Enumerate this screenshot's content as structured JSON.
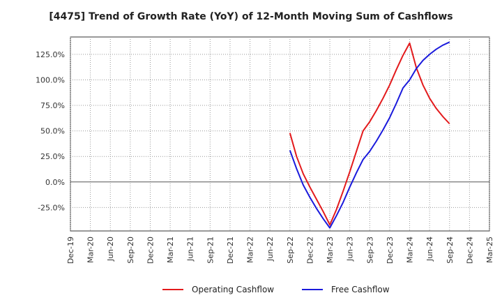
{
  "chart_data": {
    "type": "line",
    "title": "[4475]  Trend of Growth Rate (YoY) of 12-Month Moving Sum of Cashflows",
    "xlabel": "",
    "ylabel": "",
    "x_ticks": [
      "Dec-19",
      "Mar-20",
      "Jun-20",
      "Sep-20",
      "Dec-20",
      "Mar-21",
      "Jun-21",
      "Sep-21",
      "Dec-21",
      "Mar-22",
      "Jun-22",
      "Sep-22",
      "Dec-22",
      "Mar-23",
      "Jun-23",
      "Sep-23",
      "Dec-23",
      "Mar-24",
      "Jun-24",
      "Sep-24",
      "Dec-24",
      "Mar-25"
    ],
    "y_ticks": [
      "125.0%",
      "100.0%",
      "75.0%",
      "50.0%",
      "25.0%",
      "0.0%",
      "-25.0%"
    ],
    "y_tick_values": [
      125,
      100,
      75,
      50,
      25,
      0,
      -25
    ],
    "ylim": [
      -48,
      142
    ],
    "grid": true,
    "legend_position": "bottom",
    "series": [
      {
        "name": "Operating Cashflow",
        "color": "#e31a1c",
        "points": [
          [
            "Sep-22",
            48
          ],
          [
            "Oct-22",
            25
          ],
          [
            "Nov-22",
            8
          ],
          [
            "Dec-22",
            -5
          ],
          [
            "Jan-23",
            -17
          ],
          [
            "Feb-23",
            -29
          ],
          [
            "Mar-23",
            -42
          ],
          [
            "Apr-23",
            -27
          ],
          [
            "May-23",
            -9
          ],
          [
            "Jun-23",
            10
          ],
          [
            "Jul-23",
            30
          ],
          [
            "Aug-23",
            50
          ],
          [
            "Sep-23",
            59
          ],
          [
            "Oct-23",
            70
          ],
          [
            "Nov-23",
            82
          ],
          [
            "Dec-23",
            95
          ],
          [
            "Jan-24",
            110
          ],
          [
            "Feb-24",
            124
          ],
          [
            "Mar-24",
            136
          ],
          [
            "Apr-24",
            112
          ],
          [
            "May-24",
            95
          ],
          [
            "Jun-24",
            82
          ],
          [
            "Jul-24",
            72
          ],
          [
            "Aug-24",
            64
          ],
          [
            "Sep-24",
            57
          ]
        ]
      },
      {
        "name": "Free Cashflow",
        "color": "#1a1adc",
        "points": [
          [
            "Sep-22",
            31
          ],
          [
            "Oct-22",
            13
          ],
          [
            "Nov-22",
            -3
          ],
          [
            "Dec-22",
            -15
          ],
          [
            "Jan-23",
            -26
          ],
          [
            "Feb-23",
            -36
          ],
          [
            "Mar-23",
            -45
          ],
          [
            "Apr-23",
            -33
          ],
          [
            "May-23",
            -20
          ],
          [
            "Jun-23",
            -5
          ],
          [
            "Jul-23",
            9
          ],
          [
            "Aug-23",
            22
          ],
          [
            "Sep-23",
            30
          ],
          [
            "Oct-23",
            40
          ],
          [
            "Nov-23",
            51
          ],
          [
            "Dec-23",
            63
          ],
          [
            "Jan-24",
            77
          ],
          [
            "Feb-24",
            92
          ],
          [
            "Mar-24",
            100
          ],
          [
            "Apr-24",
            111
          ],
          [
            "May-24",
            119
          ],
          [
            "Jun-24",
            125
          ],
          [
            "Jul-24",
            130
          ],
          [
            "Aug-24",
            134
          ],
          [
            "Sep-24",
            137
          ]
        ]
      }
    ]
  }
}
